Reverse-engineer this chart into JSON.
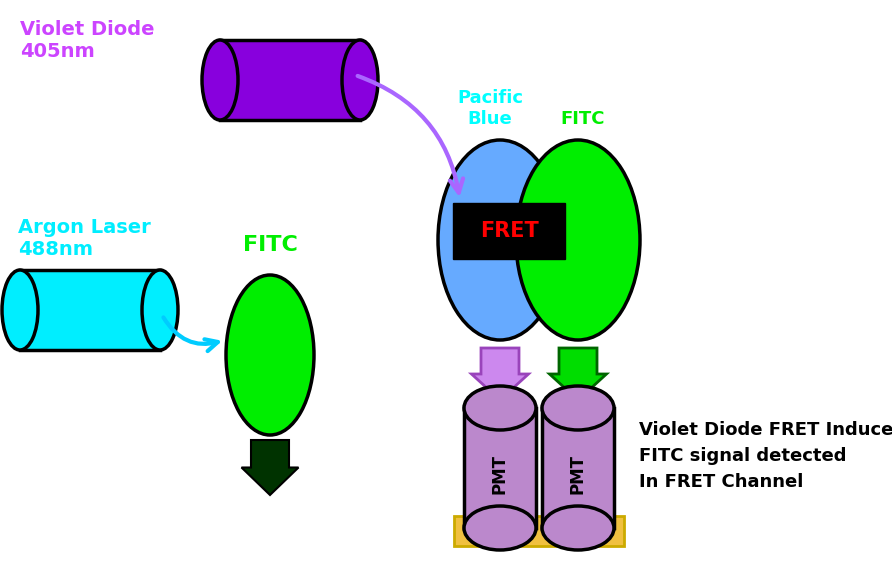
{
  "bg_color": "#ffffff",
  "figsize": [
    8.92,
    5.61
  ],
  "dpi": 100,
  "violet_laser_color": "#8800dd",
  "violet_label": "Violet Diode\n405nm",
  "violet_label_color": "#cc44ff",
  "argon_laser_color": "#00eeff",
  "argon_label": "Argon Laser\n488nm",
  "argon_label_color": "#00eeff",
  "fitc_color": "#00ee00",
  "fitc_label_color": "#00ee00",
  "pacific_blue_color": "#66aaff",
  "pacific_blue_label_color": "#00ffff",
  "arrow_violet_color": "#aa66ff",
  "arrow_cyan_color": "#00ccff",
  "pmt_color": "#bb88cc",
  "pmt_platform_color": "#f0c040",
  "left_down_arrow_color": "#cc88ee",
  "right_down_arrow_color": "#00dd00",
  "single_down_arrow_color": "#003300",
  "label_455_color": "#cc88ff",
  "label_525_color": "#00dd00",
  "annotation_text": "Violet Diode FRET Induced\nFITC signal detected\nIn FRET Channel",
  "annotation_color": "#000000"
}
